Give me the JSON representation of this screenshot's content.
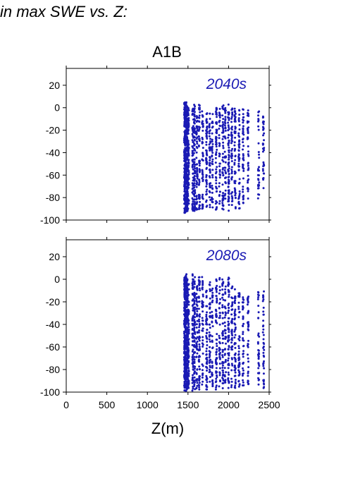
{
  "figure": {
    "title_fragment": "in max SWE vs. Z:",
    "scenario": "A1B"
  },
  "colors": {
    "points": "#1a1ab4",
    "axes": "#000000"
  },
  "chart_data": [
    {
      "type": "scatter",
      "panel_label": "2040s",
      "title": "A1B",
      "xlabel": "",
      "ylabel": "",
      "xlim": [
        0,
        2500
      ],
      "ylim": [
        -100,
        35
      ],
      "yticks": [
        20,
        0,
        -20,
        -40,
        -60,
        -80,
        -100
      ],
      "grid": false,
      "columns": [
        {
          "x": 1460,
          "ymin": -94,
          "ymax": 5,
          "n": 170
        },
        {
          "x": 1475,
          "ymin": -93,
          "ymax": 5,
          "n": 160
        },
        {
          "x": 1490,
          "ymin": -92,
          "ymax": 4,
          "n": 150
        },
        {
          "x": 1505,
          "ymin": -90,
          "ymax": 3,
          "n": 90
        },
        {
          "x": 1560,
          "ymin": -92,
          "ymax": 2,
          "n": 70
        },
        {
          "x": 1580,
          "ymin": -92,
          "ymax": 3,
          "n": 75
        },
        {
          "x": 1610,
          "ymin": -91,
          "ymax": 0,
          "n": 55
        },
        {
          "x": 1640,
          "ymin": -91,
          "ymax": 3,
          "n": 60
        },
        {
          "x": 1680,
          "ymin": -90,
          "ymax": -2,
          "n": 45
        },
        {
          "x": 1730,
          "ymin": -92,
          "ymax": 0,
          "n": 60
        },
        {
          "x": 1770,
          "ymin": -90,
          "ymax": -5,
          "n": 45
        },
        {
          "x": 1800,
          "ymin": -92,
          "ymax": -2,
          "n": 40
        },
        {
          "x": 1850,
          "ymin": -91,
          "ymax": 0,
          "n": 60
        },
        {
          "x": 1890,
          "ymin": -88,
          "ymax": -1,
          "n": 40
        },
        {
          "x": 1930,
          "ymin": -91,
          "ymax": 3,
          "n": 55
        },
        {
          "x": 1960,
          "ymin": -88,
          "ymax": 0,
          "n": 40
        },
        {
          "x": 2000,
          "ymin": -92,
          "ymax": 5,
          "n": 70
        },
        {
          "x": 2040,
          "ymin": -88,
          "ymax": 2,
          "n": 45
        },
        {
          "x": 2080,
          "ymin": -90,
          "ymax": 0,
          "n": 55
        },
        {
          "x": 2130,
          "ymin": -90,
          "ymax": 0,
          "n": 55
        },
        {
          "x": 2180,
          "ymin": -86,
          "ymax": -1,
          "n": 45
        },
        {
          "x": 2240,
          "ymin": -82,
          "ymax": 0,
          "n": 40
        },
        {
          "x": 2370,
          "ymin": -82,
          "ymax": -3,
          "n": 30
        },
        {
          "x": 2430,
          "ymin": -74,
          "ymax": -5,
          "n": 35
        }
      ]
    },
    {
      "type": "scatter",
      "panel_label": "2080s",
      "xlabel": "Z(m)",
      "ylabel": "",
      "xlim": [
        0,
        2500
      ],
      "ylim": [
        -100,
        35
      ],
      "xticks": [
        0,
        500,
        1000,
        1500,
        2000,
        2500
      ],
      "yticks": [
        20,
        0,
        -20,
        -40,
        -60,
        -80,
        -100
      ],
      "grid": false,
      "columns": [
        {
          "x": 1460,
          "ymin": -99,
          "ymax": 2,
          "n": 170
        },
        {
          "x": 1475,
          "ymin": -99,
          "ymax": 5,
          "n": 160
        },
        {
          "x": 1490,
          "ymin": -98,
          "ymax": 0,
          "n": 150
        },
        {
          "x": 1505,
          "ymin": -97,
          "ymax": -3,
          "n": 90
        },
        {
          "x": 1560,
          "ymin": -99,
          "ymax": 6,
          "n": 75
        },
        {
          "x": 1580,
          "ymin": -98,
          "ymax": 3,
          "n": 75
        },
        {
          "x": 1610,
          "ymin": -97,
          "ymax": 0,
          "n": 55
        },
        {
          "x": 1640,
          "ymin": -98,
          "ymax": 2,
          "n": 60
        },
        {
          "x": 1680,
          "ymin": -96,
          "ymax": 2,
          "n": 45
        },
        {
          "x": 1730,
          "ymin": -98,
          "ymax": -10,
          "n": 60
        },
        {
          "x": 1770,
          "ymin": -96,
          "ymax": -2,
          "n": 45
        },
        {
          "x": 1800,
          "ymin": -97,
          "ymax": -5,
          "n": 40
        },
        {
          "x": 1850,
          "ymin": -98,
          "ymax": 0,
          "n": 60
        },
        {
          "x": 1890,
          "ymin": -95,
          "ymax": 3,
          "n": 40
        },
        {
          "x": 1930,
          "ymin": -97,
          "ymax": 0,
          "n": 55
        },
        {
          "x": 1960,
          "ymin": -95,
          "ymax": -5,
          "n": 40
        },
        {
          "x": 2000,
          "ymin": -98,
          "ymax": 2,
          "n": 70
        },
        {
          "x": 2040,
          "ymin": -96,
          "ymax": -5,
          "n": 45
        },
        {
          "x": 2080,
          "ymin": -97,
          "ymax": -8,
          "n": 55
        },
        {
          "x": 2130,
          "ymin": -96,
          "ymax": -10,
          "n": 50
        },
        {
          "x": 2180,
          "ymin": -95,
          "ymax": -15,
          "n": 40
        },
        {
          "x": 2240,
          "ymin": -95,
          "ymax": -15,
          "n": 40
        },
        {
          "x": 2370,
          "ymin": -95,
          "ymax": -10,
          "n": 35
        },
        {
          "x": 2430,
          "ymin": -97,
          "ymax": -10,
          "n": 40
        }
      ]
    }
  ]
}
